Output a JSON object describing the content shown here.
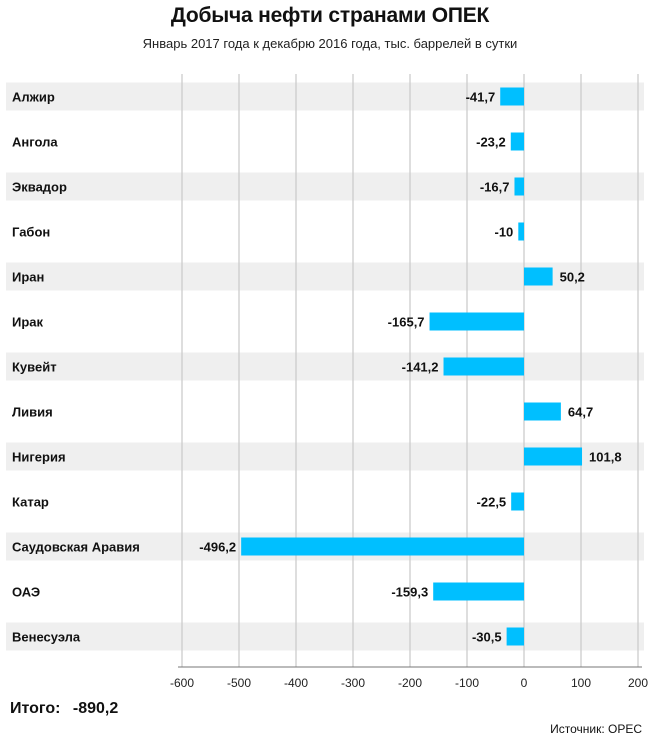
{
  "title": "Добыча нефти странами ОПЕК",
  "subtitle": "Январь 2017 года к декабрю 2016 года, тыс. баррелей в сутки",
  "total": {
    "label": "Итого:",
    "value": "-890,2"
  },
  "source": "Источник: OPEC",
  "colors": {
    "bar": "#00bfff",
    "band": "#efefef",
    "grid": "#c8c8c8",
    "axis": "#777777"
  },
  "chart_data": {
    "type": "bar",
    "orientation": "horizontal",
    "categories": [
      "Алжир",
      "Ангола",
      "Эквадор",
      "Габон",
      "Иран",
      "Ирак",
      "Кувейт",
      "Ливия",
      "Нигерия",
      "Катар",
      "Саудовская Аравия",
      "ОАЭ",
      "Венесуэла"
    ],
    "values": [
      -41.7,
      -23.2,
      -16.7,
      -10,
      50.2,
      -165.7,
      -141.2,
      64.7,
      101.8,
      -22.5,
      -496.2,
      -159.3,
      -30.5
    ],
    "value_labels": [
      "-41,7",
      "-23,2",
      "-16,7",
      "-10",
      "50,2",
      "-165,7",
      "-141,2",
      "64,7",
      "101,8",
      "-22,5",
      "-496,2",
      "-159,3",
      "-30,5"
    ],
    "xlim": [
      -600,
      200
    ],
    "xticks": [
      -600,
      -500,
      -400,
      -300,
      -200,
      -100,
      0,
      100,
      200
    ],
    "grid": true,
    "legend": "none"
  }
}
